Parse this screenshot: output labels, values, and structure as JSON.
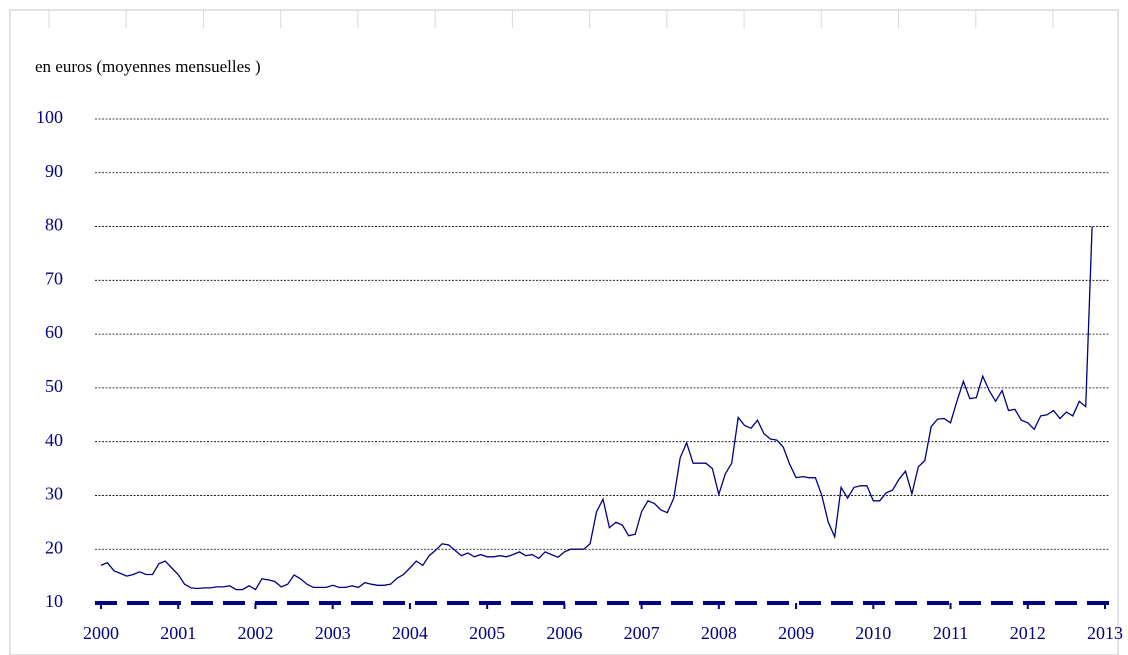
{
  "chart_data": {
    "type": "line",
    "subtitle": "en euros (moyennes mensuelles )",
    "x": [
      2000,
      2000.083,
      2000.167,
      2000.25,
      2000.333,
      2000.417,
      2000.5,
      2000.583,
      2000.667,
      2000.75,
      2000.833,
      2000.917,
      2001,
      2001.083,
      2001.167,
      2001.25,
      2001.333,
      2001.417,
      2001.5,
      2001.583,
      2001.667,
      2001.75,
      2001.833,
      2001.917,
      2002,
      2002.083,
      2002.167,
      2002.25,
      2002.333,
      2002.417,
      2002.5,
      2002.583,
      2002.667,
      2002.75,
      2002.833,
      2002.917,
      2003,
      2003.083,
      2003.167,
      2003.25,
      2003.333,
      2003.417,
      2003.5,
      2003.583,
      2003.667,
      2003.75,
      2003.833,
      2003.917,
      2004,
      2004.083,
      2004.167,
      2004.25,
      2004.333,
      2004.417,
      2004.5,
      2004.583,
      2004.667,
      2004.75,
      2004.833,
      2004.917,
      2005,
      2005.083,
      2005.167,
      2005.25,
      2005.333,
      2005.417,
      2005.5,
      2005.583,
      2005.667,
      2005.75,
      2005.833,
      2005.917,
      2006,
      2006.083,
      2006.167,
      2006.25,
      2006.333,
      2006.417,
      2006.5,
      2006.583,
      2006.667,
      2006.75,
      2006.833,
      2006.917,
      2007,
      2007.083,
      2007.167,
      2007.25,
      2007.333,
      2007.417,
      2007.5,
      2007.583,
      2007.667,
      2007.75,
      2007.833,
      2007.917,
      2008,
      2008.083,
      2008.167,
      2008.25,
      2008.333,
      2008.417,
      2008.5,
      2008.583,
      2008.667,
      2008.75,
      2008.833,
      2008.917,
      2009,
      2009.083,
      2009.167,
      2009.25,
      2009.333,
      2009.417,
      2009.5,
      2009.583,
      2009.667,
      2009.75,
      2009.833,
      2009.917,
      2010,
      2010.083,
      2010.167,
      2010.25,
      2010.333,
      2010.417,
      2010.5,
      2010.583,
      2010.667,
      2010.75,
      2010.833,
      2010.917,
      2011,
      2011.083,
      2011.167,
      2011.25,
      2011.333,
      2011.417,
      2011.5,
      2011.583,
      2011.667,
      2011.75,
      2011.833,
      2011.917,
      2012,
      2012.083,
      2012.167,
      2012.25,
      2012.333,
      2012.417,
      2012.5,
      2012.583,
      2012.667,
      2012.75,
      2012.833
    ],
    "values": [
      17,
      17.5,
      16,
      15.5,
      15,
      15.3,
      15.8,
      15.3,
      15.3,
      17.3,
      17.8,
      16.5,
      15.3,
      13.5,
      12.8,
      12.7,
      12.8,
      12.8,
      13,
      13,
      13.2,
      12.5,
      12.5,
      13.2,
      12.5,
      14.5,
      14.3,
      14,
      13,
      13.5,
      15.2,
      14.5,
      13.5,
      12.9,
      12.9,
      12.9,
      13.3,
      12.9,
      12.9,
      13.2,
      12.9,
      13.8,
      13.5,
      13.3,
      13.3,
      13.5,
      14.6,
      15.3,
      16.5,
      17.8,
      17,
      18.8,
      19.8,
      21,
      20.8,
      19.8,
      18.8,
      19.3,
      18.6,
      19,
      18.6,
      18.6,
      18.8,
      18.6,
      19,
      19.5,
      18.8,
      19,
      18.3,
      19.5,
      19,
      18.5,
      19.5,
      20,
      20,
      20,
      21,
      27,
      29.3,
      24,
      25,
      24.5,
      22.5,
      22.8,
      27,
      29,
      28.5,
      27.3,
      26.8,
      29.5,
      37,
      39.8,
      36,
      36,
      36,
      35,
      30.2,
      34,
      36,
      44.5,
      43,
      42.5,
      44,
      41.5,
      40.5,
      40.3,
      39,
      35.8,
      33.3,
      33.5,
      33.3,
      33.3,
      30,
      25,
      22.3,
      31.5,
      29.5,
      31.5,
      31.8,
      31.8,
      29,
      29,
      30.5,
      31,
      33,
      34.5,
      30.3,
      35.3,
      36.5,
      42.8,
      44.2,
      44.3,
      43.5,
      47.5,
      51.2,
      48,
      48.2,
      52.2,
      49.5,
      47.5,
      49.5,
      45.8,
      46,
      44,
      43.5,
      42.3,
      44.8,
      45,
      45.8,
      44.3,
      45.5,
      44.8,
      47.5,
      46.5,
      80
    ],
    "color": "#000080",
    "xlim": [
      2000,
      2013
    ],
    "xticks": [
      2000,
      2001,
      2002,
      2003,
      2004,
      2005,
      2006,
      2007,
      2008,
      2009,
      2010,
      2011,
      2012,
      2013
    ],
    "ylim": [
      10,
      100
    ],
    "yticks": [
      10,
      20,
      30,
      40,
      50,
      60,
      70,
      80,
      90,
      100
    ],
    "grid": true
  }
}
